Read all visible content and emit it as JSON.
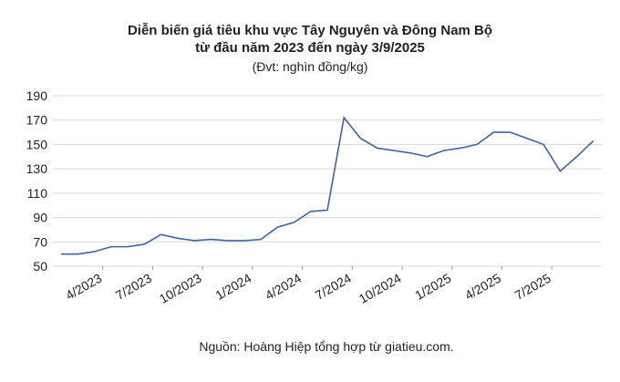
{
  "chart_data": {
    "type": "line",
    "title": [
      "Diễn biến giá tiêu khu vực Tây Nguyên và Đông Nam Bộ",
      "từ đầu năm 2023 đến ngày 3/9/2025"
    ],
    "subtitle": "(Đvt: nghìn đồng/kg)",
    "source": "Nguồn: Hoàng Hiệp tổng hợp từ giatieu.com.",
    "x": [
      "2023-01",
      "2023-02",
      "2023-03",
      "2023-04",
      "2023-05",
      "2023-06",
      "2023-07",
      "2023-08",
      "2023-09",
      "2023-10",
      "2023-11",
      "2023-12",
      "2024-01",
      "2024-02",
      "2024-03",
      "2024-04",
      "2024-05",
      "2024-06",
      "2024-07",
      "2024-08",
      "2024-09",
      "2024-10",
      "2024-11",
      "2024-12",
      "2025-01",
      "2025-02",
      "2025-03",
      "2025-04",
      "2025-05",
      "2025-06",
      "2025-07",
      "2025-08",
      "2025-09"
    ],
    "series": [
      {
        "color": "#3c64ae",
        "values": [
          60,
          60,
          62,
          66,
          66,
          68,
          76,
          73,
          71,
          72,
          71,
          71,
          72,
          82,
          86,
          95,
          96,
          172,
          155,
          147,
          145,
          143,
          140,
          145,
          147,
          150,
          160,
          160,
          155,
          150,
          128,
          140,
          153
        ]
      }
    ],
    "xticks": [
      {
        "value": "2023-04",
        "label": "4/2023"
      },
      {
        "value": "2023-07",
        "label": "7/2023"
      },
      {
        "value": "2023-10",
        "label": "10/2023"
      },
      {
        "value": "2024-01",
        "label": "1/2024"
      },
      {
        "value": "2024-04",
        "label": "4/2024"
      },
      {
        "value": "2024-07",
        "label": "7/2024"
      },
      {
        "value": "2024-10",
        "label": "10/2024"
      },
      {
        "value": "2025-01",
        "label": "1/2025"
      },
      {
        "value": "2025-04",
        "label": "4/2025"
      },
      {
        "value": "2025-07",
        "label": "7/2025"
      }
    ],
    "ylim": [
      50,
      190
    ],
    "yticks": [
      50,
      70,
      90,
      110,
      130,
      150,
      170,
      190
    ],
    "grid": true
  }
}
